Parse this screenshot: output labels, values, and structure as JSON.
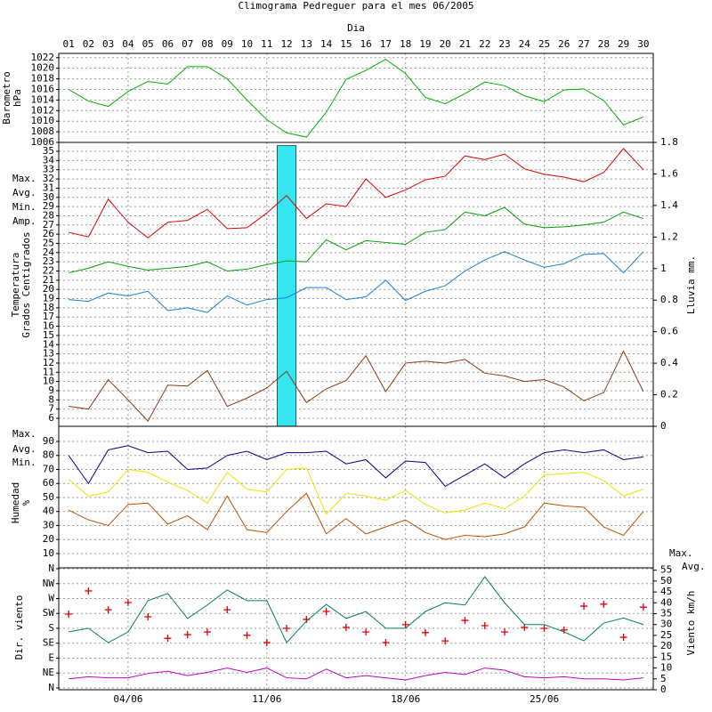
{
  "chart_data": [
    {
      "type": "line",
      "title": "Climograma Pedreguer para el mes 06/2005",
      "x_label": "Dia",
      "categories": [
        "01",
        "02",
        "03",
        "04",
        "05",
        "06",
        "07",
        "08",
        "09",
        "10",
        "11",
        "12",
        "13",
        "14",
        "15",
        "16",
        "17",
        "18",
        "19",
        "20",
        "21",
        "22",
        "23",
        "24",
        "25",
        "26",
        "27",
        "28",
        "29",
        "30"
      ],
      "ylabel": [
        "Barometro",
        "hPa"
      ],
      "ylim": [
        1006,
        1022.8
      ],
      "yticks": [
        1006,
        1008,
        1010,
        1012,
        1014,
        1016,
        1018,
        1020,
        1022
      ],
      "grid": true,
      "series": [
        {
          "color": "#00b000",
          "values": [
            1016,
            1013.8,
            1012.8,
            1015.6,
            1017.5,
            1017,
            1020.3,
            1020.3,
            1018,
            1014,
            1010.3,
            1007.8,
            1007,
            1011.7,
            1017.9,
            1019.6,
            1021.7,
            1019,
            1014.5,
            1013.3,
            1015.2,
            1017.4,
            1016.7,
            1014.8,
            1013.7,
            1015.9,
            1016.1,
            1013.9,
            1009.3,
            1010.8
          ]
        }
      ]
    },
    {
      "type": "line",
      "ylabel": [
        "Temperatura",
        "Grados Centigrados"
      ],
      "y2label": "Lluvia mm.",
      "legend": "left",
      "ylim": [
        5.13,
        35.97
      ],
      "yticks": [
        6,
        7,
        8,
        9,
        10,
        11,
        12,
        13,
        14,
        15,
        16,
        17,
        18,
        19,
        20,
        21,
        22,
        23,
        24,
        25,
        26,
        27,
        28,
        29,
        30,
        31,
        32,
        33,
        34,
        35
      ],
      "y2lim": [
        0,
        1.8
      ],
      "y2ticks": [
        0,
        0.2,
        0.4,
        0.6,
        0.8,
        1,
        1.2,
        1.4,
        1.6,
        1.8
      ],
      "grid": true,
      "series": [
        {
          "type": "bar",
          "axis": "y2",
          "color": "#33e6f0",
          "values": [
            0,
            0,
            0,
            0,
            0,
            0,
            0,
            0,
            0,
            0,
            0,
            1.78,
            0,
            0,
            0,
            0,
            0,
            0,
            0,
            0,
            0,
            0,
            0,
            0,
            0,
            0,
            0,
            0,
            0,
            0
          ]
        },
        {
          "name": "Max.",
          "color": "#dd0000",
          "values": [
            26.2,
            25.7,
            29.8,
            27.3,
            25.6,
            27.3,
            27.5,
            28.7,
            26.6,
            26.7,
            28.3,
            30.2,
            27.7,
            29.3,
            29,
            32,
            30,
            30.8,
            31.9,
            32.3,
            34.5,
            34.1,
            34.7,
            33.1,
            32.5,
            32.2,
            31.7,
            32.7,
            35.3,
            33
          ]
        },
        {
          "name": "Avg.",
          "color": "#00a000",
          "values": [
            21.8,
            22.3,
            23,
            22.5,
            22.1,
            22.3,
            22.5,
            23,
            22,
            22.2,
            22.7,
            23.1,
            23,
            25.4,
            24.3,
            25.3,
            25.1,
            24.9,
            26.2,
            26.5,
            28.4,
            28,
            28.9,
            27.1,
            26.7,
            26.8,
            27,
            27.3,
            28.4,
            27.7
          ]
        },
        {
          "name": "Min.",
          "color": "#1a80d0",
          "values": [
            18.9,
            18.7,
            19.6,
            19.3,
            19.8,
            17.7,
            18,
            17.5,
            19.3,
            18.3,
            18.9,
            19.1,
            20.2,
            20.2,
            18.9,
            19.2,
            21,
            18.8,
            19.8,
            20.4,
            22,
            23.2,
            24.1,
            23.2,
            22.4,
            22.8,
            23.8,
            23.9,
            21.8,
            24.1
          ]
        },
        {
          "name": "Amp.",
          "color": "#8b3a0f",
          "values": [
            7.3,
            7,
            10.2,
            8,
            5.7,
            9.6,
            9.5,
            11.2,
            7.3,
            8.2,
            9.3,
            11.1,
            7.7,
            9.2,
            10.1,
            12.8,
            8.9,
            12,
            12.2,
            12,
            12.4,
            10.9,
            10.6,
            10,
            10.2,
            9.4,
            7.9,
            8.8,
            13.3,
            8.9
          ]
        }
      ]
    },
    {
      "type": "line",
      "ylabel": [
        "Humedad",
        "%"
      ],
      "legend": "left",
      "ylim": [
        -0.2,
        100.8
      ],
      "yticks": [
        10,
        20,
        30,
        40,
        50,
        60,
        70,
        80,
        90
      ],
      "grid": true,
      "series": [
        {
          "name": "Max.",
          "color": "#00008b",
          "values": [
            80,
            60,
            84,
            87,
            82,
            83,
            70,
            71,
            80,
            83,
            77,
            82,
            82,
            83,
            74,
            77,
            64,
            76,
            75,
            58,
            66,
            74,
            64,
            74,
            82,
            84,
            82,
            84,
            77,
            79
          ]
        },
        {
          "name": "Avg.",
          "color": "#e6e600",
          "values": [
            63,
            51,
            54,
            70,
            68,
            61,
            55,
            46,
            68,
            56,
            54,
            70,
            71,
            38,
            53,
            51,
            48,
            55,
            45,
            39,
            41,
            46,
            42,
            51,
            66,
            67,
            68,
            62,
            51,
            56
          ]
        },
        {
          "name": "Min.",
          "color": "#c05000",
          "values": [
            41,
            34,
            30,
            45,
            46,
            31,
            37,
            27,
            51,
            27,
            25,
            40,
            53,
            24,
            35,
            24,
            29,
            34,
            25,
            20,
            23,
            22,
            24,
            29,
            46,
            44,
            43,
            29,
            23,
            40
          ]
        }
      ]
    },
    {
      "type": "line",
      "ylabel": [
        "Dir. viento"
      ],
      "y2label": "Viento km/h",
      "legend": "right",
      "categories": [
        null,
        null,
        null,
        "04/06",
        null,
        null,
        null,
        null,
        null,
        null,
        "11/06",
        null,
        null,
        null,
        null,
        null,
        null,
        "18/06",
        null,
        null,
        null,
        null,
        null,
        null,
        "25/06",
        null,
        null,
        null,
        null,
        null
      ],
      "ylim": [
        -5.4,
        362.7
      ],
      "yticks": [
        {
          "value": 0,
          "label": "N"
        },
        {
          "value": 45,
          "label": "NE"
        },
        {
          "value": 90,
          "label": "E"
        },
        {
          "value": 135,
          "label": "SE"
        },
        {
          "value": 180,
          "label": "S"
        },
        {
          "value": 225,
          "label": "SW"
        },
        {
          "value": 270,
          "label": "W"
        },
        {
          "value": 315,
          "label": "NW"
        },
        {
          "value": 360,
          "label": "N"
        }
      ],
      "y2lim": [
        0,
        56.1
      ],
      "y2ticks": [
        0,
        5,
        10,
        15,
        20,
        25,
        30,
        35,
        40,
        45,
        50,
        55
      ],
      "grid": true,
      "series": [
        {
          "type": "scatter",
          "color": "#e00000",
          "values": [
            223,
            293,
            236,
            258,
            215,
            150,
            161,
            169,
            236,
            159,
            137,
            180,
            207,
            231,
            183,
            169,
            137,
            191,
            167,
            142,
            204,
            188,
            169,
            183,
            180,
            175,
            247,
            253,
            153,
            244
          ]
        },
        {
          "name": "Max.",
          "axis": "y2",
          "color": "#008060",
          "values": [
            26.6,
            28.3,
            21.7,
            26.6,
            41,
            44.3,
            32.8,
            39,
            45.9,
            41,
            41,
            21.7,
            31.6,
            39.3,
            32.8,
            36,
            28.3,
            28.3,
            36,
            40,
            39,
            52,
            40,
            30,
            30,
            26.6,
            22.5,
            30.7,
            33,
            30
          ]
        },
        {
          "name": "Avg.",
          "axis": "y2",
          "color": "#c000c0",
          "values": [
            5,
            6,
            5.5,
            5.5,
            7.5,
            8.5,
            6.5,
            8,
            10,
            8,
            10,
            5.5,
            5,
            9.5,
            5.5,
            6.5,
            5.5,
            4.5,
            6.5,
            8,
            7,
            10,
            9,
            6,
            5.5,
            6,
            5,
            5,
            4.5,
            5.5
          ]
        }
      ]
    }
  ]
}
